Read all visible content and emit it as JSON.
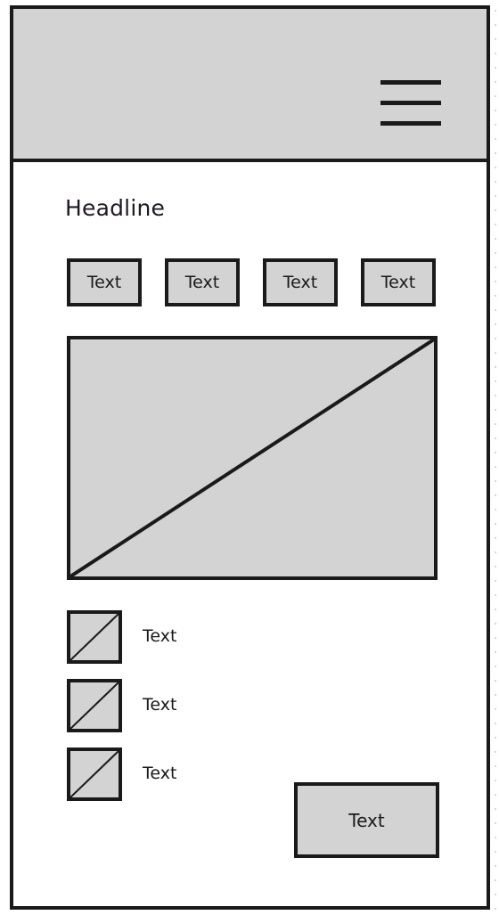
{
  "header": {
    "menu_icon": "hamburger-menu-icon"
  },
  "main": {
    "headline": "Headline",
    "tags": [
      {
        "label": "Text"
      },
      {
        "label": "Text"
      },
      {
        "label": "Text"
      },
      {
        "label": "Text"
      }
    ],
    "image_placeholder_icon": "image-placeholder-icon",
    "list": [
      {
        "label": "Text",
        "icon": "thumbnail-placeholder-icon"
      },
      {
        "label": "Text",
        "icon": "thumbnail-placeholder-icon"
      },
      {
        "label": "Text",
        "icon": "thumbnail-placeholder-icon"
      }
    ],
    "action_button": "Text"
  },
  "colors": {
    "placeholder_fill": "#d3d3d3",
    "stroke": "#1a1a1a",
    "background": "#ffffff"
  }
}
